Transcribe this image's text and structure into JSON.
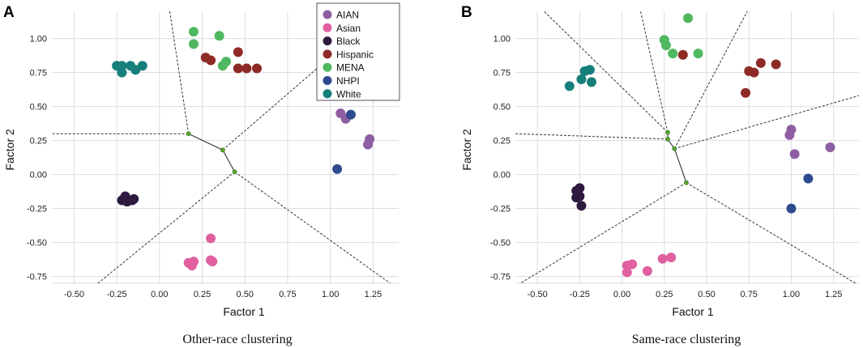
{
  "colors": {
    "AIAN": "#8e5ea2",
    "Asian": "#e060a0",
    "Black": "#2e1a3e",
    "Hispanic": "#8e2a26",
    "MENA": "#4fb860",
    "NHPI": "#2e4a8e",
    "White": "#167f7a",
    "grid": "#d9dce3",
    "boundary": "#333333",
    "tree_edge": "#333333",
    "centroid": "#5aa832"
  },
  "legend": {
    "panel": "A",
    "entries": [
      {
        "label": "AIAN",
        "color": "#8e5ea2"
      },
      {
        "label": "Asian",
        "color": "#e060a0"
      },
      {
        "label": "Black",
        "color": "#2e1a3e"
      },
      {
        "label": "Hispanic",
        "color": "#8e2a26"
      },
      {
        "label": "MENA",
        "color": "#4fb860"
      },
      {
        "label": "NHPI",
        "color": "#2e4a8e"
      },
      {
        "label": "White",
        "color": "#167f7a"
      }
    ]
  },
  "chart_data": [
    {
      "type": "scatter",
      "panel_letter": "A",
      "caption": "Other-race clustering",
      "xlabel": "Factor 1",
      "ylabel": "Factor 2",
      "xlim": [
        -0.63,
        1.4
      ],
      "ylim": [
        -0.8,
        1.2
      ],
      "xticks": [
        "-0.50",
        "-0.25",
        "0.00",
        "0.25",
        "0.50",
        "0.75",
        "1.00",
        "1.25"
      ],
      "xtick_values": [
        -0.5,
        -0.25,
        0,
        0.25,
        0.5,
        0.75,
        1.0,
        1.25
      ],
      "yticks": [
        "-0.75",
        "-0.50",
        "-0.25",
        "0.00",
        "0.25",
        "0.50",
        "0.75",
        "1.00"
      ],
      "ytick_values": [
        -0.75,
        -0.5,
        -0.25,
        0,
        0.25,
        0.5,
        0.75,
        1.0
      ],
      "series": [
        {
          "name": "AIAN",
          "points": [
            [
              1.06,
              0.45
            ],
            [
              1.09,
              0.41
            ],
            [
              1.22,
              0.22
            ],
            [
              1.23,
              0.26
            ]
          ]
        },
        {
          "name": "Asian",
          "points": [
            [
              0.17,
              -0.65
            ],
            [
              0.19,
              -0.67
            ],
            [
              0.2,
              -0.64
            ],
            [
              0.3,
              -0.63
            ],
            [
              0.31,
              -0.64
            ],
            [
              0.3,
              -0.47
            ]
          ]
        },
        {
          "name": "Black",
          "points": [
            [
              -0.22,
              -0.19
            ],
            [
              -0.2,
              -0.16
            ],
            [
              -0.19,
              -0.2
            ],
            [
              -0.21,
              -0.18
            ],
            [
              -0.16,
              -0.19
            ],
            [
              -0.15,
              -0.18
            ]
          ]
        },
        {
          "name": "Hispanic",
          "points": [
            [
              0.27,
              0.86
            ],
            [
              0.3,
              0.84
            ],
            [
              0.46,
              0.9
            ],
            [
              0.46,
              0.78
            ],
            [
              0.51,
              0.78
            ],
            [
              0.57,
              0.78
            ]
          ]
        },
        {
          "name": "MENA",
          "points": [
            [
              0.2,
              1.05
            ],
            [
              0.2,
              0.96
            ],
            [
              0.35,
              1.02
            ],
            [
              0.37,
              0.8
            ],
            [
              0.39,
              0.83
            ]
          ]
        },
        {
          "name": "NHPI",
          "points": [
            [
              1.12,
              0.44
            ],
            [
              1.04,
              0.04
            ]
          ]
        },
        {
          "name": "White",
          "points": [
            [
              -0.25,
              0.8
            ],
            [
              -0.22,
              0.8
            ],
            [
              -0.17,
              0.8
            ],
            [
              -0.22,
              0.75
            ],
            [
              -0.14,
              0.77
            ],
            [
              -0.1,
              0.8
            ]
          ]
        }
      ],
      "centroids": [
        [
          0.17,
          0.3
        ],
        [
          0.37,
          0.18
        ],
        [
          0.44,
          0.02
        ]
      ],
      "boundaries": [
        [
          [
            0.17,
            0.3
          ],
          [
            -0.63,
            0.3
          ]
        ],
        [
          [
            0.17,
            0.3
          ],
          [
            0.06,
            1.2
          ]
        ],
        [
          [
            0.37,
            0.18
          ],
          [
            0.95,
            0.81
          ]
        ],
        [
          [
            0.44,
            0.02
          ],
          [
            -0.36,
            -0.8
          ]
        ],
        [
          [
            0.44,
            0.02
          ],
          [
            1.35,
            -0.8
          ]
        ]
      ]
    },
    {
      "type": "scatter",
      "panel_letter": "B",
      "caption": "Same-race clustering",
      "xlabel": "Factor 1",
      "ylabel": "Factor 2",
      "xlim": [
        -0.63,
        1.4
      ],
      "ylim": [
        -0.8,
        1.2
      ],
      "xticks": [
        "-0.50",
        "-0.25",
        "0.00",
        "0.25",
        "0.50",
        "0.75",
        "1.00",
        "1.25"
      ],
      "xtick_values": [
        -0.5,
        -0.25,
        0,
        0.25,
        0.5,
        0.75,
        1.0,
        1.25
      ],
      "yticks": [
        "-0.75",
        "-0.50",
        "-0.25",
        "0.00",
        "0.25",
        "0.50",
        "0.75",
        "1.00"
      ],
      "ytick_values": [
        -0.75,
        -0.5,
        -0.25,
        0,
        0.25,
        0.5,
        0.75,
        1.0
      ],
      "series": [
        {
          "name": "AIAN",
          "points": [
            [
              1.0,
              0.33
            ],
            [
              0.99,
              0.29
            ],
            [
              1.02,
              0.15
            ],
            [
              1.23,
              0.2
            ]
          ]
        },
        {
          "name": "Asian",
          "points": [
            [
              0.03,
              -0.67
            ],
            [
              0.06,
              -0.66
            ],
            [
              0.03,
              -0.72
            ],
            [
              0.15,
              -0.71
            ],
            [
              0.24,
              -0.62
            ],
            [
              0.29,
              -0.61
            ]
          ]
        },
        {
          "name": "Black",
          "points": [
            [
              -0.27,
              -0.12
            ],
            [
              -0.25,
              -0.1
            ],
            [
              -0.27,
              -0.17
            ],
            [
              -0.25,
              -0.16
            ],
            [
              -0.24,
              -0.23
            ]
          ]
        },
        {
          "name": "Hispanic",
          "points": [
            [
              0.36,
              0.88
            ],
            [
              0.73,
              0.6
            ],
            [
              0.75,
              0.76
            ],
            [
              0.78,
              0.75
            ],
            [
              0.82,
              0.82
            ],
            [
              0.91,
              0.81
            ]
          ]
        },
        {
          "name": "MENA",
          "points": [
            [
              0.25,
              0.99
            ],
            [
              0.26,
              0.95
            ],
            [
              0.3,
              0.89
            ],
            [
              0.39,
              1.15
            ],
            [
              0.45,
              0.89
            ]
          ]
        },
        {
          "name": "NHPI",
          "points": [
            [
              1.1,
              -0.03
            ],
            [
              1.0,
              -0.25
            ]
          ]
        },
        {
          "name": "White",
          "points": [
            [
              -0.31,
              0.65
            ],
            [
              -0.24,
              0.7
            ],
            [
              -0.22,
              0.76
            ],
            [
              -0.19,
              0.77
            ],
            [
              -0.18,
              0.68
            ]
          ]
        }
      ],
      "centroids": [
        [
          0.27,
          0.31
        ],
        [
          0.27,
          0.26
        ],
        [
          0.31,
          0.19
        ],
        [
          0.38,
          -0.06
        ]
      ],
      "boundaries": [
        [
          [
            0.27,
            0.31
          ],
          [
            0.11,
            1.2
          ]
        ],
        [
          [
            0.27,
            0.31
          ],
          [
            -0.46,
            1.2
          ]
        ],
        [
          [
            0.27,
            0.26
          ],
          [
            -0.63,
            0.3
          ]
        ],
        [
          [
            0.31,
            0.19
          ],
          [
            0.74,
            1.2
          ]
        ],
        [
          [
            0.31,
            0.19
          ],
          [
            1.4,
            0.58
          ]
        ],
        [
          [
            0.38,
            -0.06
          ],
          [
            -0.6,
            -0.8
          ]
        ],
        [
          [
            0.38,
            -0.06
          ],
          [
            1.38,
            -0.8
          ]
        ]
      ]
    }
  ]
}
